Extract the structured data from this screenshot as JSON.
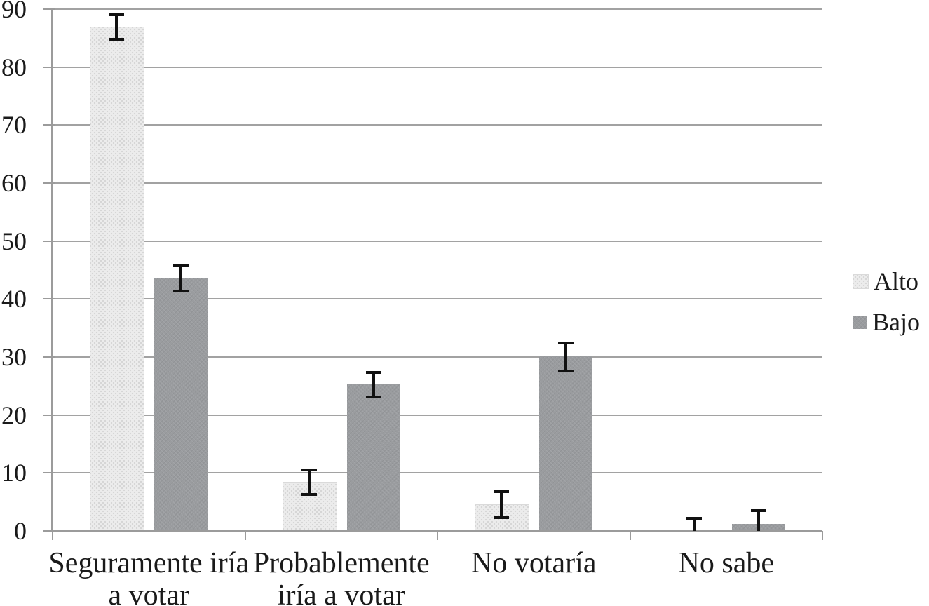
{
  "chart_data": {
    "type": "bar",
    "title": "",
    "xlabel": "",
    "ylabel": "",
    "categories": [
      "Seguramente iría a votar",
      "Probablemente iría a votar",
      "No votaría",
      "No sabe"
    ],
    "category_label_lines": [
      [
        "Seguramente iría",
        "a votar"
      ],
      [
        "Probablemente",
        "iría a votar"
      ],
      [
        "No votaría"
      ],
      [
        "No sabe"
      ]
    ],
    "series": [
      {
        "name": "Alto",
        "values": [
          87.0,
          8.5,
          4.6,
          0.0
        ],
        "error_bars_plus_minus": [
          2.2,
          2.2,
          2.3,
          2.3
        ],
        "color": "#ececec",
        "texture": "dotted"
      },
      {
        "name": "Bajo",
        "values": [
          43.7,
          25.3,
          30.1,
          1.2
        ],
        "error_bars_plus_minus": [
          2.3,
          2.2,
          2.5,
          2.4
        ],
        "color": "#9a9c9f",
        "texture": "solid"
      }
    ],
    "ylim": [
      0,
      90
    ],
    "yticks": [
      0,
      10,
      20,
      30,
      40,
      50,
      60,
      70,
      80,
      90
    ],
    "grid": true,
    "error_bars": true,
    "legend_position": "right",
    "colors": {
      "gridline": "#a2a2a2",
      "axis": "#9b9b9b",
      "error_bar": "#111111",
      "text": "#1a1a1a",
      "background": "#ffffff"
    }
  }
}
